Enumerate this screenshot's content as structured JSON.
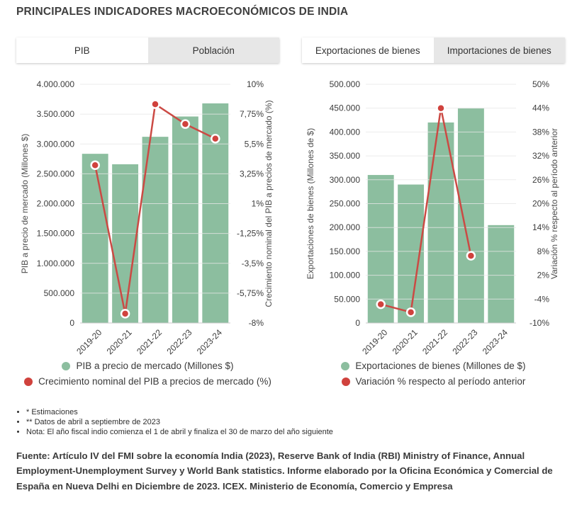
{
  "page_title": "PRINCIPALES INDICADORES MACROECONÓMICOS DE INDIA",
  "colors": {
    "bar_green": "#8cbe9f",
    "line_red": "#cb4a44",
    "marker_red": "#d0423d",
    "grid": "#e6e6e6",
    "axis_line": "#c9c9c9",
    "tick_text": "#3c3c3c",
    "axis_title_text": "#4d4d4d"
  },
  "panels": [
    {
      "tabs": [
        {
          "label": "PIB",
          "active": true
        },
        {
          "label": "Población",
          "active": false
        }
      ],
      "legend": [
        {
          "label": "PIB a precio de mercado (Millones $)",
          "color_key": "bar_green"
        },
        {
          "label": "Crecimiento nominal del PIB a precios de mercado (%)",
          "color_key": "marker_red"
        }
      ]
    },
    {
      "tabs": [
        {
          "label": "Exportaciones de bienes",
          "active": true
        },
        {
          "label": "Importaciones de bienes",
          "active": false
        }
      ],
      "legend": [
        {
          "label": "Exportaciones de bienes (Millones de $)",
          "color_key": "bar_green"
        },
        {
          "label": "Variación % respecto al período anterior",
          "color_key": "marker_red"
        }
      ]
    }
  ],
  "chart_data": [
    {
      "type": "bar",
      "categories": [
        "2019-20",
        "2020-21",
        "2021-22",
        "2022-23",
        "2023-24"
      ],
      "series": [
        {
          "name": "PIB a precio de mercado (Millones $)",
          "type": "bar",
          "axis": "left",
          "values": [
            2835000,
            2660000,
            3120000,
            3460000,
            3680000
          ]
        },
        {
          "name": "Crecimiento nominal del PIB a precios de mercado (%)",
          "type": "line",
          "axis": "right",
          "values": [
            3.9,
            -7.3,
            8.5,
            7.0,
            5.9
          ]
        }
      ],
      "left_axis": {
        "title": "PIB a precio de mercado (Millones $)",
        "min": 0,
        "max": 4000000,
        "tick_labels": [
          "4.000.000",
          "3.500.000",
          "3.000.000",
          "2.500.000",
          "2.000.000",
          "1.500.000",
          "1.000.000",
          "500.000",
          "0"
        ]
      },
      "right_axis": {
        "title": "Crecimiento nominal del PIB a precios de mercado (%)",
        "min": -8,
        "max": 10,
        "tick_labels": [
          "10%",
          "7,75%",
          "5,5%",
          "3,25%",
          "1%",
          "-1,25%",
          "-3,5%",
          "-5,75%",
          "-8%"
        ]
      },
      "grid": true,
      "legend_position": "bottom"
    },
    {
      "type": "bar",
      "categories": [
        "2019-20",
        "2020-21",
        "2021-22",
        "2022-23",
        "2023-24"
      ],
      "series": [
        {
          "name": "Exportaciones de bienes (Millones de $)",
          "type": "bar",
          "axis": "left",
          "values": [
            310000,
            290000,
            420000,
            450000,
            205000
          ]
        },
        {
          "name": "Variación % respecto al período anterior",
          "type": "line",
          "axis": "right",
          "values": [
            -5.3,
            -7.3,
            44,
            6.9,
            null
          ]
        }
      ],
      "left_axis": {
        "title": "Exportaciones de bienes (Millones de $)",
        "min": 0,
        "max": 500000,
        "tick_labels": [
          "500.000",
          "450.000",
          "400.000",
          "350.000",
          "300.000",
          "250.000",
          "200.000",
          "150.000",
          "100.000",
          "50.000",
          "0"
        ]
      },
      "right_axis": {
        "title": "Variación % respecto al período anterior",
        "min": -10,
        "max": 50,
        "tick_labels": [
          "50%",
          "44%",
          "38%",
          "32%",
          "26%",
          "20%",
          "14%",
          "8%",
          "2%",
          "-4%",
          "-10%"
        ]
      },
      "grid": true,
      "legend_position": "bottom"
    }
  ],
  "footnotes": [
    "* Estimaciones",
    "** Datos de abril a septiembre de 2023",
    "Nota: El año fiscal indio comienza el 1 de abril y finaliza el 30 de marzo del año siguiente"
  ],
  "source": "Fuente: Artículo IV del FMI sobre la economía India (2023), Reserve Bank of India (RBI) Ministry of Finance, Annual Employment-Unemployment Survey y World Bank statistics. Informe elaborado por la Oficina Económica y Comercial de España en Nueva Delhi en Diciembre de 2023. ICEX. Ministerio de Economía, Comercio y Empresa"
}
